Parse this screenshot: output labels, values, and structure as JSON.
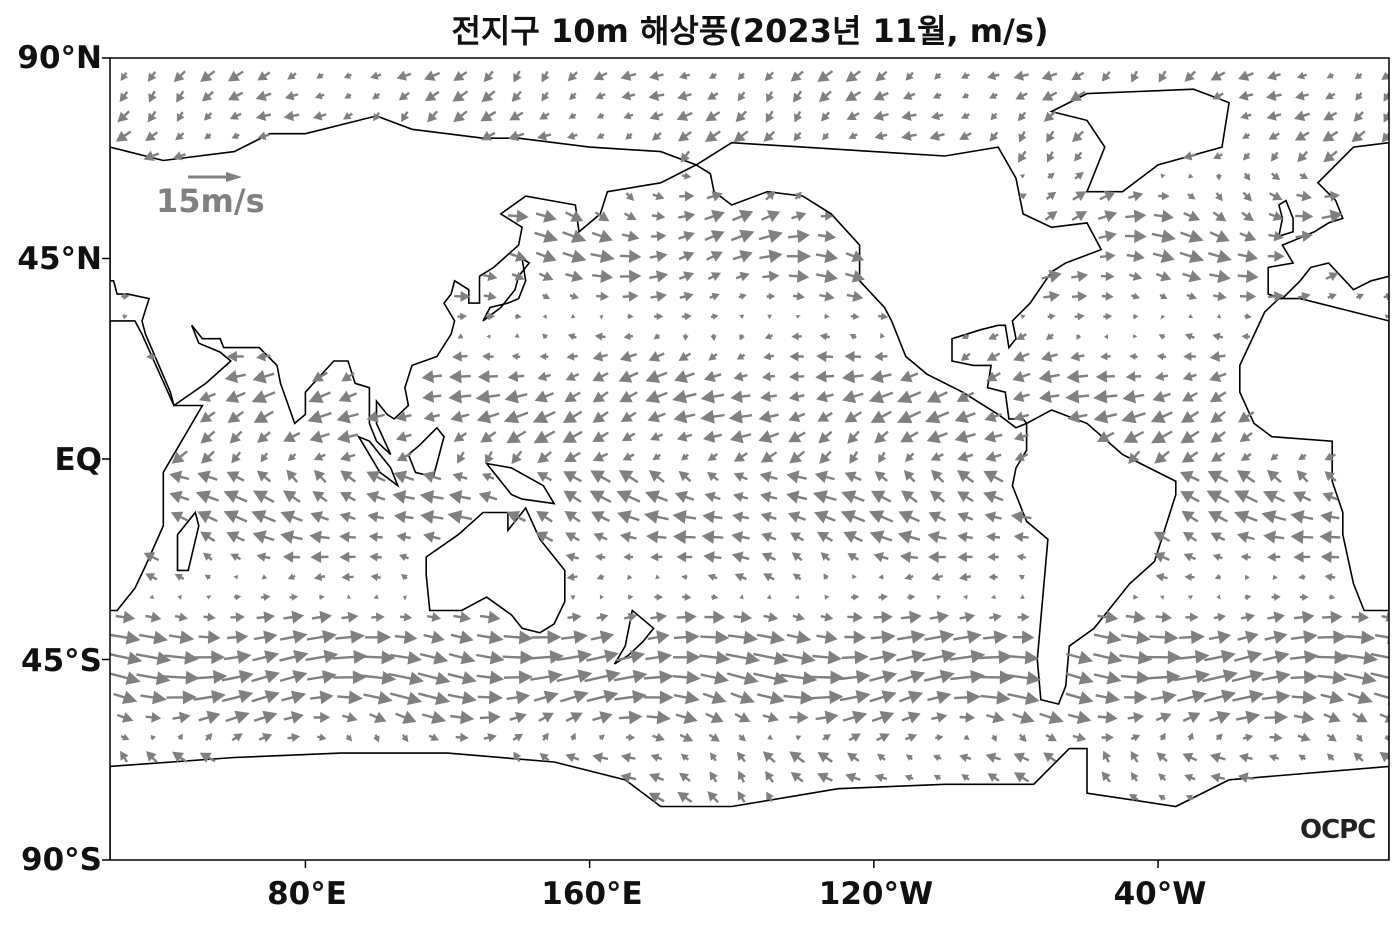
{
  "title": "전지구 10m 해상풍(2023년 11월, m/s)",
  "y_axis": {
    "ticks": [
      "90°N",
      "45°N",
      "EQ",
      "45°S",
      "90°S"
    ]
  },
  "x_axis": {
    "ticks": [
      "80°E",
      "160°E",
      "120°W",
      "40°W"
    ]
  },
  "reference_vector": {
    "label": "15m/s",
    "speed": 15,
    "color": "#808080"
  },
  "logo": "OCPC",
  "colors": {
    "arrows": "#808080",
    "coastline": "#000000",
    "land": "#ffffff"
  }
}
